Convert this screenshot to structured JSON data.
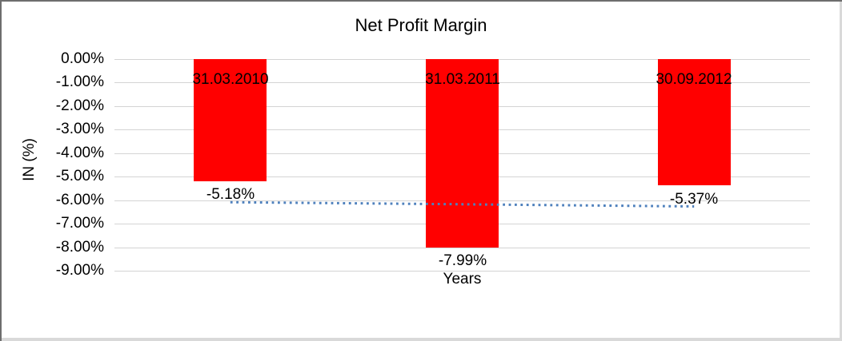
{
  "window": {
    "background": "#FFFFFF",
    "border_top_left_color": "#6E6E6E",
    "border_bottom_right_color": "#D9D9D9"
  },
  "chart_data": {
    "type": "bar",
    "title": "Net Profit Margin",
    "xlabel": "Years",
    "ylabel": "IN (%)",
    "categories": [
      "31.03.2010",
      "31.03.2011",
      "30.09.2012"
    ],
    "values": [
      -5.18,
      -7.99,
      -5.37
    ],
    "data_labels": [
      "-5.18%",
      "-7.99%",
      "-5.37%"
    ],
    "ylim": [
      -9,
      0
    ],
    "ytick_labels": [
      "0.00%",
      "-1.00%",
      "-2.00%",
      "-3.00%",
      "-4.00%",
      "-5.00%",
      "-6.00%",
      "-7.00%",
      "-8.00%",
      "-9.00%"
    ],
    "grid": true,
    "legend": "none",
    "bar_color": "#FF0000",
    "gridline_color": "#D4D4D4",
    "text_color": "#000000",
    "trendline": {
      "type": "linear",
      "style": "dotted",
      "color": "#4F81BD",
      "values": [
        -6.09,
        -6.18,
        -6.27
      ]
    }
  }
}
